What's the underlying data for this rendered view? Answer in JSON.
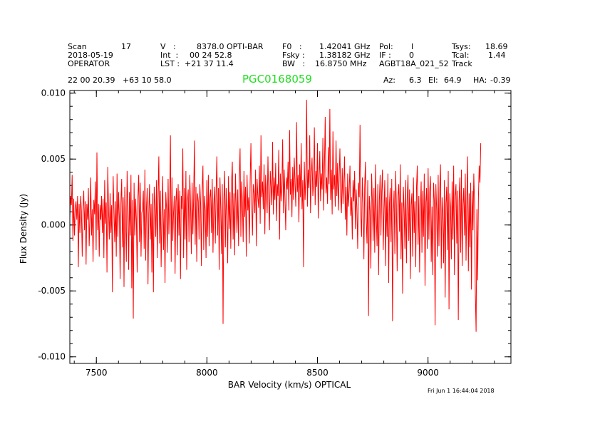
{
  "header": {
    "scan_label": "Scan",
    "scan_value": "17",
    "date": "2018-05-19",
    "operator": "OPERATOR",
    "v_label": "V   :",
    "v_value": "8378.0 OPTI-BAR",
    "int_label": "Int  :",
    "int_value": "00 24 52.8",
    "lst_label": "LST :",
    "lst_value": "+21 37 11.4",
    "f0_label": "F0   :",
    "f0_value": "1.42041 GHz",
    "fsky_label": "Fsky :",
    "fsky_value": "1.38182 GHz",
    "bw_label": "BW   :",
    "bw_value": "16.8750 MHz",
    "pol_label": "Pol:",
    "pol_value": "I",
    "if_label": "IF :",
    "if_value": "0",
    "project": "AGBT18A_021_52",
    "mode": "Track",
    "tsys_label": "Tsys:",
    "tsys_value": "18.69",
    "tcal_label": "Tcal:",
    "tcal_value": "1.44",
    "coords": "22 00 20.39   +63 10 58.0",
    "source": "PGC0168059",
    "source_color": "#22dd22",
    "az_label": "Az:",
    "az_value": "6.3",
    "el_label": "El:",
    "el_value": "64.9",
    "ha_label": "HA:",
    "ha_value": "-0.39",
    "timestamp": "Fri Jun  1 16:44:04 2018"
  },
  "chart_data": {
    "type": "line",
    "xlabel": "BAR Velocity (km/s) OPTICAL",
    "ylabel": "Flux Density (Jy)",
    "xlim": [
      7380,
      9375
    ],
    "ylim": [
      -0.0105,
      0.0102
    ],
    "x_ticks": [
      7500,
      8000,
      8500,
      9000
    ],
    "x_tick_labels": [
      "7500",
      "8000",
      "8500",
      "9000"
    ],
    "y_ticks": [
      0.01,
      0.005,
      0.0,
      -0.005,
      -0.01
    ],
    "y_tick_labels": [
      "0.010",
      "0.005",
      "0.000",
      "-0.005",
      "-0.010"
    ],
    "x_minor_step": 100,
    "y_minor_step": 0.001,
    "line_color": "#ff0000",
    "grid": false,
    "series": [
      {
        "x_start": 7380,
        "x_step": 3.5,
        "values": [
          0.0005,
          0.0022,
          0.0015,
          0.0038,
          -0.0012,
          0.002,
          -0.0008,
          0.0013,
          0.0018,
          0.0004,
          0.0022,
          -0.0032,
          0.0016,
          -0.0006,
          0.0022,
          0.001,
          -0.0024,
          0.0012,
          0.0026,
          -0.0004,
          0.0018,
          -0.003,
          0.0016,
          0.0004,
          0.0028,
          -0.0016,
          0.0005,
          0.0036,
          -0.0008,
          0.0012,
          -0.0028,
          0.0019,
          0.0008,
          0.0033,
          -0.0019,
          0.0055,
          -0.0004,
          0.0016,
          -0.0024,
          0.0015,
          0.0004,
          0.0022,
          -0.0006,
          0.002,
          -0.0025,
          0.0034,
          0.0001,
          0.0017,
          -0.0036,
          0.0044,
          0.0012,
          -0.0011,
          0.0024,
          -0.0006,
          0.0015,
          -0.0051,
          0.0037,
          0.0011,
          -0.0013,
          0.0018,
          -0.0024,
          0.0039,
          -0.0009,
          0.0025,
          0.0006,
          -0.0041,
          0.0017,
          0.0035,
          -0.0017,
          0.0021,
          -0.0047,
          0.0029,
          0.0005,
          -0.0028,
          0.0041,
          0.0014,
          -0.0034,
          0.0025,
          -0.0008,
          0.0038,
          -0.0048,
          0.0019,
          -0.0071,
          0.0032,
          -0.0008,
          0.002,
          0.0004,
          -0.0036,
          0.0021,
          0.0038,
          -0.0013,
          0.0032,
          -0.0024,
          0.0009,
          0.0012,
          0.0026,
          -0.0018,
          0.0042,
          -0.0027,
          0.0013,
          0.0028,
          -0.0045,
          0.0008,
          0.0031,
          -0.0011,
          0.0016,
          -0.0036,
          0.0024,
          -0.0051,
          0.0029,
          0.0015,
          -0.0009,
          0.0034,
          -0.0025,
          0.0021,
          0.0052,
          -0.0014,
          0.0026,
          -0.0032,
          0.0008,
          0.0037,
          -0.0019,
          0.0012,
          -0.0044,
          0.0025,
          0.0012,
          -0.0021,
          0.0035,
          -0.0007,
          0.0018,
          0.0068,
          -0.0028,
          0.0036,
          -0.0012,
          0.0009,
          0.0022,
          -0.0037,
          0.0018,
          0.0028,
          -0.0023,
          0.0031,
          -0.0008,
          0.0026,
          -0.0041,
          0.0022,
          0.0012,
          0.0058,
          -0.0025,
          0.0028,
          -0.0011,
          0.0041,
          -0.0034,
          0.0018,
          0.0027,
          -0.0013,
          0.0038,
          0.0015,
          -0.0022,
          0.0032,
          -0.0007,
          0.0021,
          0.0064,
          -0.0015,
          0.0029,
          -0.0028,
          0.0024,
          0.0018,
          -0.0011,
          0.0031,
          0.0016,
          -0.0031,
          0.0027,
          0.0045,
          -0.0019,
          0.0022,
          0.0011,
          -0.0025,
          0.0034,
          -0.0009,
          0.0038,
          -0.0016,
          0.0021,
          0.0027,
          -0.0006,
          0.0035,
          -0.0021,
          0.0015,
          0.0029,
          -0.0014,
          0.0026,
          0.0052,
          -0.0008,
          0.0028,
          -0.0034,
          0.0036,
          0.0012,
          -0.0022,
          0.0031,
          -0.0075,
          0.0019,
          0.0041,
          -0.0017,
          0.0028,
          0.0006,
          -0.0029,
          0.0037,
          -0.0003,
          0.0025,
          -0.0018,
          0.0032,
          0.0048,
          -0.0011,
          0.0024,
          -0.0023,
          0.0039,
          0.0014,
          -0.0006,
          0.0027,
          -0.0016,
          0.0036,
          0.0058,
          -0.0009,
          0.0033,
          0.0017,
          -0.0013,
          0.0041,
          0.0006,
          0.0029,
          -0.0024,
          0.0038,
          0.0011,
          0.0021,
          -0.0014,
          0.0033,
          0.0062,
          0.0018,
          -0.0008,
          0.0031,
          0.0024,
          0.0009,
          0.0042,
          -0.0016,
          0.0035,
          0.0021,
          0.0013,
          0.0045,
          0.0001,
          0.0068,
          0.0021,
          0.0033,
          0.0012,
          0.0046,
          -0.0007,
          0.0038,
          0.0024,
          0.0009,
          0.0052,
          0.0021,
          -0.0004,
          0.0041,
          0.0029,
          0.0015,
          0.0063,
          0.0008,
          0.0036,
          0.0019,
          0.0047,
          0.0003,
          0.0031,
          0.0022,
          0.0057,
          -0.0011,
          0.0039,
          0.0018,
          0.0029,
          0.0065,
          0.0009,
          0.0042,
          0.0021,
          -0.0004,
          0.0036,
          0.0027,
          0.0048,
          0.0011,
          0.0072,
          0.0023,
          0.0035,
          0.0006,
          0.0044,
          0.0019,
          0.0051,
          0.0031,
          0.0014,
          0.0078,
          0.0025,
          0.0038,
          0.0002,
          0.0046,
          0.0021,
          0.0062,
          0.0012,
          0.0034,
          -0.0032,
          0.0048,
          0.0019,
          0.0036,
          0.0095,
          0.0014,
          0.0042,
          0.0028,
          0.0068,
          0.0009,
          0.0038,
          0.0051,
          0.0022,
          0.0031,
          0.0074,
          0.0015,
          0.0041,
          0.0029,
          0.0062,
          0.0005,
          0.0035,
          0.0056,
          0.0018,
          0.0039,
          0.0027,
          0.0066,
          0.0011,
          0.0044,
          0.0082,
          0.0024,
          0.0036,
          0.0016,
          0.0059,
          0.0031,
          0.0088,
          0.0019,
          0.0042,
          0.0008,
          0.0071,
          0.0027,
          0.0038,
          0.0014,
          0.0064,
          0.0022,
          0.0047,
          0.0011,
          0.0036,
          0.0058,
          0.0021,
          0.0009,
          0.0043,
          0.0016,
          0.0031,
          0.0052,
          0.0004,
          0.0029,
          -0.0008,
          0.0039,
          0.0014,
          0.0026,
          0.0045,
          0.0007,
          0.0021,
          -0.0011,
          0.0034,
          0.0018,
          0.0041,
          -0.0003,
          0.0027,
          0.0012,
          -0.0018,
          0.0032,
          0.0021,
          0.0076,
          0.0008,
          -0.0009,
          0.0036,
          0.0015,
          -0.0026,
          0.0029,
          0.0048,
          0.0004,
          -0.0014,
          0.0034,
          -0.0069,
          0.0022,
          0.0011,
          -0.0033,
          0.0039,
          0.0017,
          -0.0012,
          0.0028,
          -0.0021,
          0.0046,
          0.0007,
          -0.0016,
          0.0031,
          -0.0038,
          0.0019,
          0.0038,
          -0.0008,
          0.0025,
          0.0042,
          -0.0019,
          0.0012,
          0.0034,
          -0.0031,
          0.0021,
          -0.0009,
          0.0039,
          -0.0044,
          0.0016,
          0.0028,
          -0.0013,
          0.0035,
          -0.0073,
          0.0009,
          0.0026,
          -0.0022,
          0.0041,
          0.0014,
          -0.0035,
          0.0022,
          0.0031,
          -0.0005,
          0.0046,
          -0.0026,
          0.0017,
          -0.0052,
          0.0029,
          0.0011,
          -0.0018,
          0.0034,
          -0.0029,
          0.0021,
          0.0038,
          -0.0012,
          0.0027,
          -0.0041,
          0.0015,
          0.0024,
          -0.0024,
          0.0036,
          -0.0006,
          0.0018,
          -0.0032,
          0.0029,
          0.0045,
          -0.0015,
          0.0022,
          -0.0036,
          0.0012,
          0.0033,
          -0.0021,
          0.0026,
          -0.0009,
          0.0039,
          -0.0046,
          0.0017,
          0.0028,
          -0.0018,
          0.0043,
          -0.0011,
          0.0025,
          0.0037,
          -0.0028,
          0.0014,
          -0.0038,
          0.0032,
          0.0019,
          -0.0076,
          0.0031,
          0.0012,
          -0.0024,
          0.0038,
          -0.0016,
          0.0027,
          0.0046,
          -0.0033,
          0.0021,
          0.0008,
          -0.0029,
          0.0034,
          -0.0055,
          0.0016,
          0.0029,
          -0.0019,
          0.0041,
          -0.0064,
          0.0024,
          0.0013,
          -0.0026,
          0.0033,
          -0.0011,
          0.0045,
          -0.0038,
          0.0022,
          0.0031,
          -0.0014,
          0.0026,
          -0.0072,
          0.0018,
          0.0036,
          -0.0021,
          0.0042,
          -0.0031,
          0.0015,
          0.0028,
          -0.0008,
          0.0039,
          -0.0027,
          0.0019,
          0.0052,
          -0.0035,
          0.0024,
          -0.0017,
          0.0032,
          -0.0049,
          0.0026,
          -0.0004,
          0.0039,
          0.0016,
          -0.0052,
          -0.0081,
          0.0012,
          -0.0042,
          0.0021,
          0.0045,
          0.0032,
          0.0062
        ]
      }
    ]
  }
}
